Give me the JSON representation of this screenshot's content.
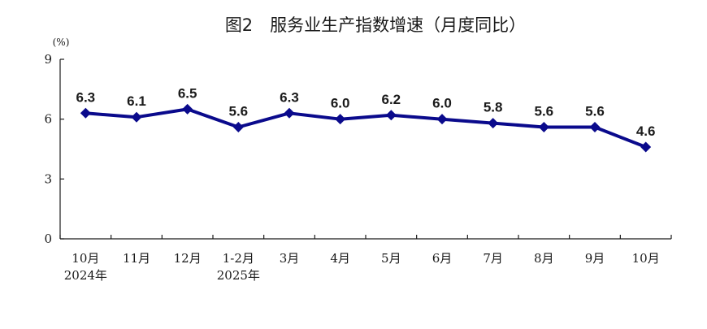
{
  "chart_data": {
    "type": "line",
    "title": "图2　服务业生产指数增速（月度同比）",
    "unit": "(%)",
    "categories": [
      [
        "10月",
        "2024年"
      ],
      [
        "11月"
      ],
      [
        "12月"
      ],
      [
        "1-2月",
        "2025年"
      ],
      [
        "3月"
      ],
      [
        "4月"
      ],
      [
        "5月"
      ],
      [
        "6月"
      ],
      [
        "7月"
      ],
      [
        "8月"
      ],
      [
        "9月"
      ],
      [
        "10月"
      ]
    ],
    "values": [
      6.3,
      6.1,
      6.5,
      5.6,
      6.3,
      6.0,
      6.2,
      6.0,
      5.8,
      5.6,
      5.6,
      4.6
    ],
    "data_labels": [
      "6.3",
      "6.1",
      "6.5",
      "5.6",
      "6.3",
      "6.0",
      "6.2",
      "6.0",
      "5.8",
      "5.6",
      "5.6",
      "4.6"
    ],
    "yticks": [
      0,
      3,
      6,
      9
    ],
    "ylim": [
      0,
      9
    ],
    "grid": false,
    "line_color": "#0a0a8c",
    "marker": "diamond"
  }
}
